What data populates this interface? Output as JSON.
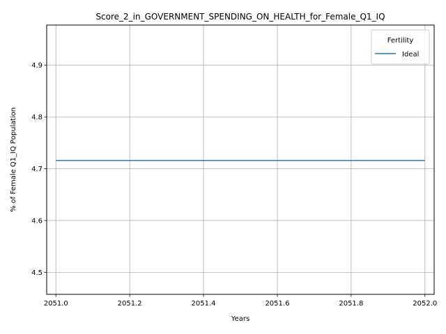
{
  "chart_data": {
    "type": "line",
    "title": "Score_2_in_GOVERNMENT_SPENDING_ON_HEALTH_for_Female_Q1_IQ",
    "xlabel": "Years",
    "ylabel": "% of Female Q1_IQ Population",
    "xlim": [
      2050.975,
      2052.025
    ],
    "ylim": [
      4.4575,
      4.9775
    ],
    "xticks": [
      2051.0,
      2051.2,
      2051.4,
      2051.6,
      2051.8,
      2052.0
    ],
    "xtick_labels": [
      "2051.0",
      "2051.2",
      "2051.4",
      "2051.6",
      "2051.8",
      "2052.0"
    ],
    "yticks": [
      4.5,
      4.6,
      4.7,
      4.8,
      4.9
    ],
    "ytick_labels": [
      "4.5",
      "4.6",
      "4.7",
      "4.8",
      "4.9"
    ],
    "grid": true,
    "legend": {
      "title": "Fertility",
      "placement": "top-right"
    },
    "series": [
      {
        "name": "Ideal",
        "color": "#1f77b4",
        "x": [
          2051,
          2052
        ],
        "y": [
          4.716,
          4.716
        ]
      }
    ]
  }
}
